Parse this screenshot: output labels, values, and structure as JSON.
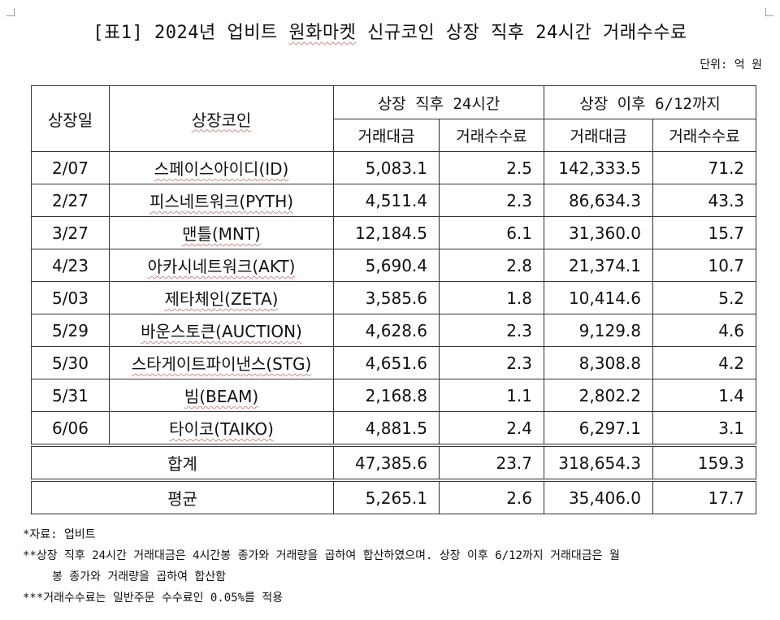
{
  "title_prefix": "[표1] 2024년 업비트 ",
  "title_squiggle": "원화마켓",
  "title_suffix": " 신규코인 상장 직후 24시간 거래수수료",
  "unit": "단위: 억 원",
  "headers": {
    "date": "상장일",
    "coin": "상장코인",
    "group1": "상장 직후 24시간",
    "group2": "상장 이후 6/12까지",
    "volume": "거래대금",
    "fee": "거래수수료"
  },
  "rows": [
    {
      "date": "2/07",
      "coin": "스페이스아이디(ID)",
      "v1": "5,083.1",
      "f1": "2.5",
      "v2": "142,333.5",
      "f2": "71.2"
    },
    {
      "date": "2/27",
      "coin": "피스네트워크(PYTH)",
      "v1": "4,511.4",
      "f1": "2.3",
      "v2": "86,634.3",
      "f2": "43.3"
    },
    {
      "date": "3/27",
      "coin": "맨틀(MNT)",
      "v1": "12,184.5",
      "f1": "6.1",
      "v2": "31,360.0",
      "f2": "15.7"
    },
    {
      "date": "4/23",
      "coin": "아카시네트워크(AKT)",
      "v1": "5,690.4",
      "f1": "2.8",
      "v2": "21,374.1",
      "f2": "10.7"
    },
    {
      "date": "5/03",
      "coin": "제타체인(ZETA)",
      "v1": "3,585.6",
      "f1": "1.8",
      "v2": "10,414.6",
      "f2": "5.2"
    },
    {
      "date": "5/29",
      "coin": "바운스토큰(AUCTION)",
      "v1": "4,628.6",
      "f1": "2.3",
      "v2": "9,129.8",
      "f2": "4.6"
    },
    {
      "date": "5/30",
      "coin": "스타게이트파이낸스(STG)",
      "v1": "4,651.6",
      "f1": "2.3",
      "v2": "8,308.8",
      "f2": "4.2"
    },
    {
      "date": "5/31",
      "coin": "빔(BEAM)",
      "v1": "2,168.8",
      "f1": "1.1",
      "v2": "2,802.2",
      "f2": "1.4"
    },
    {
      "date": "6/06",
      "coin": "타이코(TAIKO)",
      "v1": "4,881.5",
      "f1": "2.4",
      "v2": "6,297.1",
      "f2": "3.1"
    }
  ],
  "total": {
    "label": "합계",
    "v1": "47,385.6",
    "f1": "23.7",
    "v2": "318,654.3",
    "f2": "159.3"
  },
  "average": {
    "label": "평균",
    "v1": "5,265.1",
    "f1": "2.6",
    "v2": "35,406.0",
    "f2": "17.7"
  },
  "notes": {
    "source": "*자료: 업비트",
    "note2_line1": "**상장 직후 24시간 거래대금은 4시간봉 종가와 거래량을 곱하여 합산하였으며. 상장 이후 6/12까지 거래대금은 월",
    "note2_line2": "봉 종가와 거래량을 곱하여 합산함",
    "note3": "***거래수수료는 일반주문 수수료인 0.05%를 적용"
  }
}
